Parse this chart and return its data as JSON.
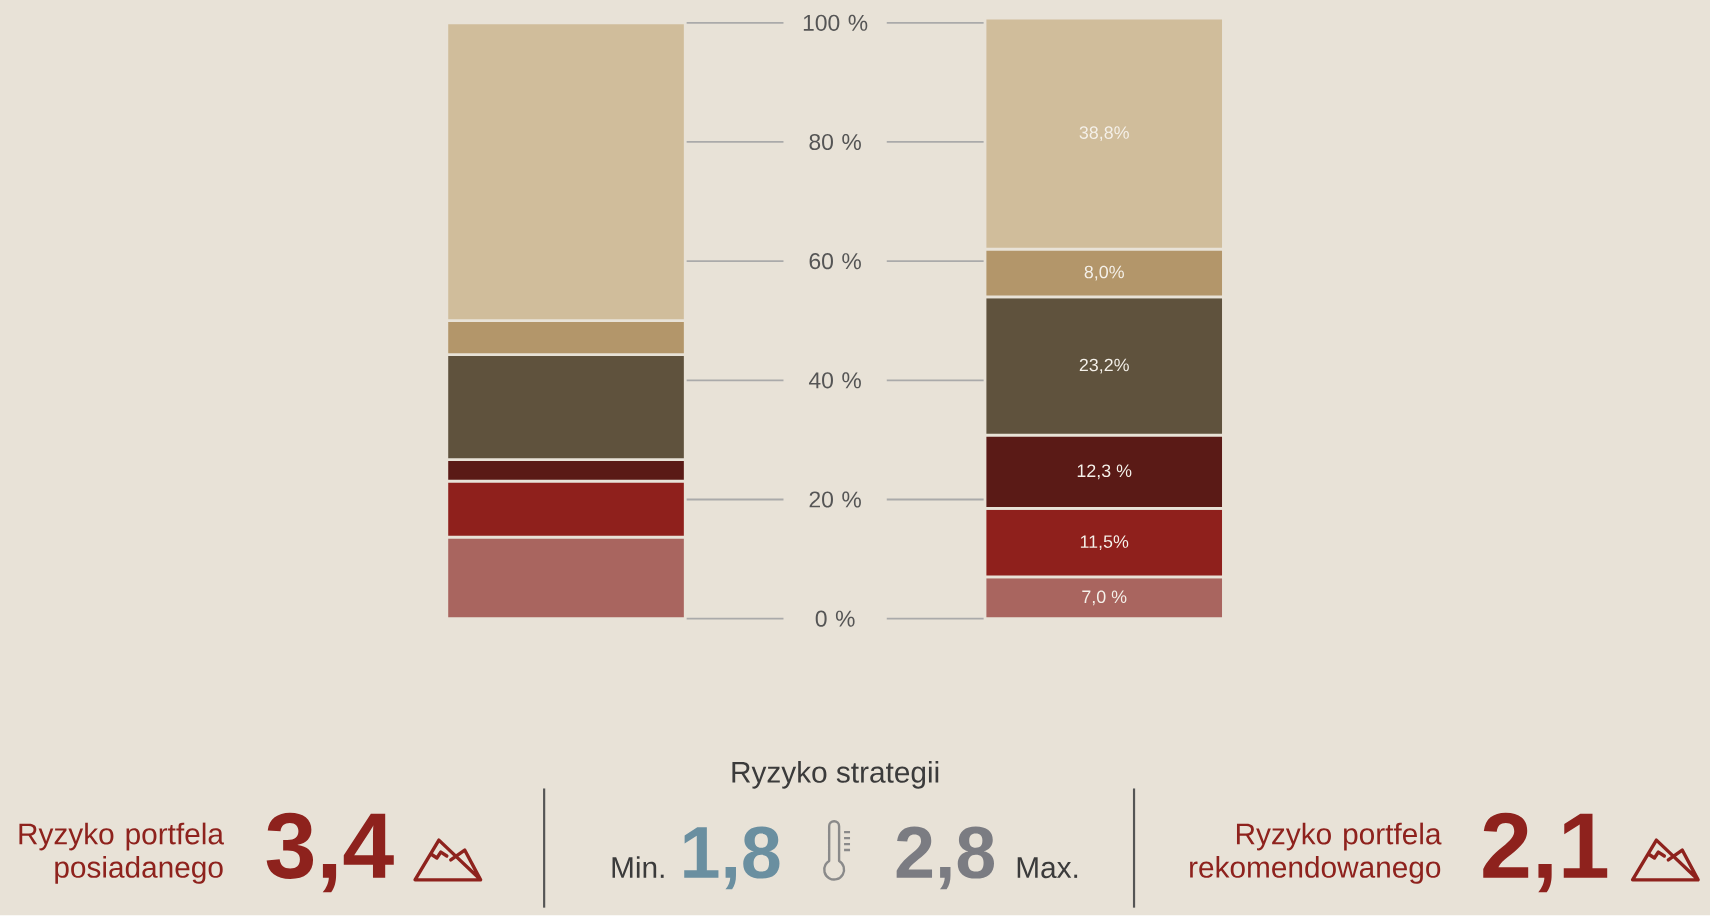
{
  "chart_data": [
    {
      "type": "bar",
      "stacked": true,
      "categories": [
        null,
        null
      ],
      "series": [
        {
          "color": "#a9655f",
          "values": [
            13.7,
            7.0
          ],
          "value_labels": [
            null,
            "7,0 %"
          ]
        },
        {
          "color": "#8f201c",
          "values": [
            9.4,
            11.5
          ],
          "value_labels": [
            null,
            "11,5%"
          ]
        },
        {
          "color": "#5a1a16",
          "values": [
            3.6,
            12.3
          ],
          "value_labels": [
            null,
            "12,3 %"
          ]
        },
        {
          "color": "#5f523d",
          "values": [
            17.6,
            23.2
          ],
          "value_labels": [
            null,
            "23,2%"
          ]
        },
        {
          "color": "#b3966a",
          "values": [
            5.7,
            8.0
          ],
          "value_labels": [
            null,
            "8,0%"
          ]
        },
        {
          "color": "#d0bd9b",
          "values": [
            50.0,
            38.8
          ],
          "value_labels": [
            null,
            "38,8%"
          ]
        }
      ],
      "ylim": [
        0,
        101
      ],
      "yticks": [
        {
          "value": 0,
          "label": "0 %"
        },
        {
          "value": 20,
          "label": "20 %"
        },
        {
          "value": 40,
          "label": "40 %"
        },
        {
          "value": 60,
          "label": "60 %"
        },
        {
          "value": 80,
          "label": "80 %"
        },
        {
          "value": 100,
          "label": "100 %"
        }
      ],
      "grid": "y"
    },
    {
      "type": "other",
      "annotations": [
        "Ryzyko portfela posiadanego",
        "3,4",
        "Ryzyko strategii",
        "Min.",
        "1,8",
        "2,8",
        "Max.",
        "Ryzyko portfela rekomendowanego",
        "2,1"
      ]
    }
  ]
}
